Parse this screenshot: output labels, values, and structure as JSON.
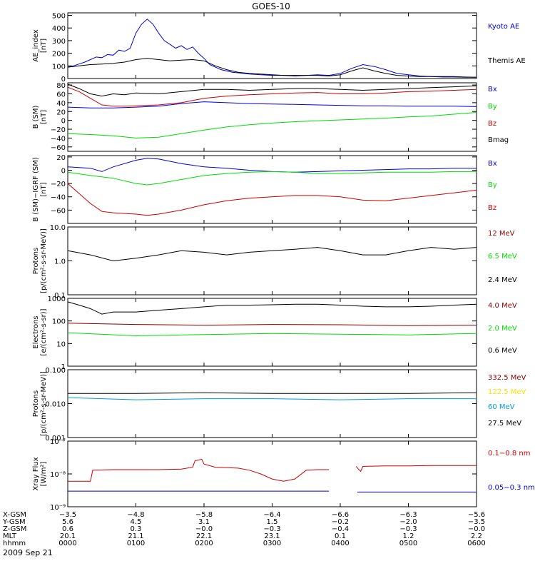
{
  "title": "GOES-10",
  "colors": {
    "black": "#000000",
    "blue": "#0000dd",
    "green": "#00dd00",
    "red": "#cc0000",
    "darkred": "#8b0000",
    "cyan": "#0099dd",
    "yellow": "#ffe000"
  },
  "chart_data": [
    {
      "type": "line",
      "ylabel": "AE_index [nT]",
      "ylabel_lines": [
        "AE_index",
        "[nT]"
      ],
      "ylim": [
        0,
        520
      ],
      "yticks": [
        "0",
        "100",
        "200",
        "300",
        "400",
        "500"
      ],
      "ytick_values": [
        0,
        100,
        200,
        300,
        400,
        500
      ],
      "series": [
        {
          "name": "Kyoto AE",
          "color": "#0000dd",
          "x": [
            0,
            5,
            10,
            15,
            20,
            25,
            30,
            35,
            40,
            45,
            50,
            55,
            60,
            65,
            70,
            75,
            80,
            85,
            90,
            95,
            100,
            105,
            110,
            115,
            120,
            125,
            130,
            135,
            140,
            145,
            150,
            155,
            160,
            170,
            180,
            190,
            200,
            210,
            220,
            230,
            240,
            250,
            260,
            270,
            280,
            290,
            300,
            310,
            320,
            330,
            340,
            350,
            360
          ],
          "y": [
            90,
            100,
            115,
            130,
            150,
            170,
            165,
            190,
            185,
            225,
            215,
            240,
            360,
            430,
            470,
            430,
            360,
            300,
            270,
            240,
            260,
            230,
            250,
            200,
            160,
            110,
            90,
            70,
            60,
            50,
            45,
            40,
            35,
            30,
            25,
            25,
            20,
            25,
            30,
            25,
            40,
            80,
            110,
            95,
            70,
            40,
            30,
            20,
            15,
            15,
            15,
            12,
            10
          ]
        },
        {
          "name": "Themis AE",
          "color": "#000000",
          "x": [
            0,
            10,
            20,
            30,
            40,
            50,
            60,
            70,
            80,
            90,
            100,
            110,
            120,
            130,
            140,
            150,
            160,
            170,
            180,
            190,
            200,
            210,
            220,
            230,
            240,
            250,
            260,
            270,
            280,
            290,
            300,
            310,
            320,
            330,
            340,
            350,
            360
          ],
          "y": [
            90,
            100,
            110,
            115,
            120,
            130,
            150,
            160,
            150,
            140,
            145,
            150,
            140,
            100,
            70,
            50,
            40,
            35,
            30,
            25,
            25,
            25,
            25,
            20,
            30,
            60,
            85,
            60,
            40,
            25,
            20,
            15,
            15,
            12,
            12,
            10,
            10
          ]
        }
      ]
    },
    {
      "type": "line",
      "ylabel": "B (SM) [nT]",
      "ylabel_lines": [
        "B (SM)",
        "[nT]"
      ],
      "ylim": [
        -70,
        85
      ],
      "yticks": [
        "−60",
        "−40",
        "−20",
        "0",
        "20",
        "40",
        "60",
        "80"
      ],
      "ytick_values": [
        -60,
        -40,
        -20,
        0,
        20,
        40,
        60,
        80
      ],
      "series": [
        {
          "name": "Bx",
          "color": "#0000dd",
          "x": [
            0,
            20,
            40,
            60,
            80,
            100,
            120,
            140,
            160,
            180,
            200,
            220,
            240,
            260,
            280,
            300,
            320,
            340,
            360
          ],
          "y": [
            30,
            28,
            28,
            30,
            32,
            38,
            42,
            40,
            38,
            37,
            36,
            35,
            34,
            33,
            33,
            32,
            32,
            32,
            31
          ]
        },
        {
          "name": "By",
          "color": "#00dd00",
          "x": [
            0,
            20,
            40,
            60,
            80,
            100,
            120,
            140,
            160,
            180,
            200,
            220,
            240,
            260,
            280,
            300,
            320,
            340,
            360
          ],
          "y": [
            -30,
            -32,
            -35,
            -40,
            -38,
            -30,
            -22,
            -15,
            -10,
            -6,
            -3,
            -1,
            1,
            3,
            5,
            8,
            10,
            14,
            18
          ]
        },
        {
          "name": "Bz",
          "color": "#cc0000",
          "x": [
            0,
            10,
            20,
            30,
            40,
            50,
            60,
            80,
            100,
            120,
            140,
            160,
            180,
            200,
            220,
            240,
            260,
            280,
            300,
            320,
            340,
            360
          ],
          "y": [
            75,
            65,
            50,
            35,
            32,
            32,
            33,
            35,
            40,
            50,
            55,
            58,
            60,
            62,
            63,
            60,
            60,
            62,
            65,
            66,
            68,
            70
          ]
        },
        {
          "name": "Bmag",
          "color": "#000000",
          "x": [
            0,
            10,
            20,
            30,
            40,
            50,
            60,
            80,
            100,
            120,
            140,
            160,
            180,
            200,
            220,
            240,
            260,
            280,
            300,
            320,
            340,
            360
          ],
          "y": [
            82,
            72,
            60,
            55,
            60,
            58,
            62,
            60,
            65,
            70,
            70,
            68,
            70,
            72,
            72,
            70,
            68,
            70,
            72,
            74,
            76,
            78
          ]
        }
      ]
    },
    {
      "type": "line",
      "ylabel": "B (SM)−IGRF (SM) [nT]",
      "ylabel_lines": [
        "B (SM)−IGRF (SM)",
        "[nT]"
      ],
      "ylim": [
        -80,
        22
      ],
      "yticks": [
        "−60",
        "−40",
        "−20",
        "0",
        "20"
      ],
      "ytick_values": [
        -60,
        -40,
        -20,
        0,
        20
      ],
      "series": [
        {
          "name": "Bx",
          "color": "#0000dd",
          "x": [
            0,
            20,
            30,
            40,
            60,
            70,
            80,
            100,
            120,
            140,
            160,
            180,
            200,
            220,
            240,
            260,
            280,
            300,
            320,
            340,
            360
          ],
          "y": [
            5,
            3,
            -2,
            5,
            15,
            18,
            17,
            10,
            5,
            3,
            0,
            -2,
            -3,
            -2,
            -1,
            0,
            1,
            2,
            2,
            3,
            3
          ]
        },
        {
          "name": "By",
          "color": "#00dd00",
          "x": [
            0,
            20,
            40,
            60,
            70,
            80,
            100,
            120,
            140,
            160,
            180,
            200,
            220,
            240,
            260,
            280,
            300,
            320,
            340,
            360
          ],
          "y": [
            -3,
            -8,
            -12,
            -20,
            -22,
            -20,
            -14,
            -8,
            -5,
            -3,
            -2,
            -3,
            -5,
            -5,
            -4,
            -3,
            -3,
            -3,
            -2,
            -2
          ]
        },
        {
          "name": "Bz",
          "color": "#cc0000",
          "x": [
            0,
            10,
            20,
            30,
            40,
            60,
            70,
            80,
            100,
            120,
            140,
            160,
            180,
            200,
            220,
            240,
            260,
            280,
            300,
            320,
            340,
            360
          ],
          "y": [
            -20,
            -35,
            -50,
            -62,
            -64,
            -66,
            -68,
            -66,
            -60,
            -52,
            -46,
            -42,
            -40,
            -38,
            -38,
            -40,
            -45,
            -46,
            -42,
            -38,
            -34,
            -30
          ]
        }
      ]
    },
    {
      "type": "line",
      "ylabel": "Protons [p/(cm²-s-sr-MeV)]",
      "ylabel_lines": [
        "Protons",
        "[p/(cm²-s-sr-MeV)]"
      ],
      "yscale": "log",
      "ylim": [
        0.1,
        10
      ],
      "yticks": [
        "0.1",
        "1.0",
        "10.0"
      ],
      "ytick_values": [
        0.1,
        1,
        10
      ],
      "series": [
        {
          "name": "12 MeV",
          "color": "#8b0000",
          "x": [],
          "y": []
        },
        {
          "name": "6.5 MeV",
          "color": "#00dd00",
          "x": [],
          "y": []
        },
        {
          "name": "2.4 MeV",
          "color": "#000000",
          "x": [
            0,
            20,
            40,
            60,
            80,
            100,
            120,
            140,
            160,
            180,
            200,
            220,
            240,
            260,
            280,
            300,
            320,
            340,
            360
          ],
          "y": [
            2,
            1.5,
            1,
            1.2,
            1.5,
            2,
            1.8,
            1.5,
            1.8,
            2,
            2.2,
            2.5,
            2,
            1.5,
            1.5,
            2,
            2.5,
            2.2,
            2.5
          ]
        }
      ]
    },
    {
      "type": "line",
      "ylabel": "Electrons [e/(cm²-s-sr)]",
      "ylabel_lines": [
        "Electrons",
        "[e/(cm²-s-sr)]"
      ],
      "yscale": "log",
      "ylim": [
        1,
        1000
      ],
      "yticks": [
        "1",
        "10",
        "100",
        "1000"
      ],
      "ytick_values": [
        1,
        10,
        100,
        1000
      ],
      "series": [
        {
          "name": "4.0 MeV",
          "color": "#8b0000",
          "x": [
            0,
            60,
            120,
            180,
            240,
            300,
            360
          ],
          "y": [
            80,
            70,
            65,
            70,
            68,
            62,
            65
          ]
        },
        {
          "name": "2.0 MeV",
          "color": "#00dd00",
          "x": [
            0,
            60,
            120,
            180,
            240,
            300,
            360
          ],
          "y": [
            30,
            22,
            25,
            28,
            26,
            24,
            28
          ]
        },
        {
          "name": "0.6 MeV",
          "color": "#000000",
          "x": [
            0,
            10,
            20,
            30,
            40,
            60,
            80,
            100,
            120,
            140,
            160,
            180,
            200,
            220,
            240,
            260,
            280,
            300,
            320,
            340,
            360
          ],
          "y": [
            700,
            500,
            350,
            200,
            250,
            250,
            300,
            350,
            420,
            500,
            500,
            520,
            550,
            550,
            500,
            450,
            420,
            420,
            450,
            500,
            550
          ]
        }
      ]
    },
    {
      "type": "line",
      "ylabel": "Protons [p/(cm²-s-sr-MeV)]",
      "ylabel_lines": [
        "Protons",
        "[p/(cm²-s-sr-MeV)]"
      ],
      "yscale": "log",
      "ylim": [
        0.001,
        0.1
      ],
      "yticks": [
        "0.001",
        "0.010",
        "0.100"
      ],
      "ytick_values": [
        0.001,
        0.01,
        0.1
      ],
      "series": [
        {
          "name": "332.5 MeV",
          "color": "#8b0000",
          "x": [],
          "y": []
        },
        {
          "name": "122.5 MeV",
          "color": "#ffe000",
          "x": [],
          "y": []
        },
        {
          "name": "60 MeV",
          "color": "#0099dd",
          "x": [
            0,
            60,
            120,
            180,
            240,
            300,
            360
          ],
          "y": [
            0.015,
            0.013,
            0.014,
            0.014,
            0.013,
            0.014,
            0.014
          ]
        },
        {
          "name": "27.5 MeV",
          "color": "#000000",
          "x": [
            0,
            60,
            120,
            180,
            240,
            300,
            360
          ],
          "y": [
            0.02,
            0.02,
            0.021,
            0.02,
            0.02,
            0.02,
            0.021
          ]
        }
      ]
    },
    {
      "type": "line",
      "ylabel": "Xray Flux [W/m²]",
      "ylabel_lines": [
        "Xray Flux",
        "[W/m²]"
      ],
      "yscale": "log",
      "ylim": [
        1e-09,
        1e-07
      ],
      "yticks": [
        "10⁻⁹",
        "10⁻⁸",
        "10⁻⁷"
      ],
      "ytick_values": [
        1e-09,
        1e-08,
        1e-07
      ],
      "series": [
        {
          "name": "0.1−0.8 nm",
          "color": "#cc0000",
          "x": [
            0,
            20,
            22,
            40,
            60,
            80,
            100,
            110,
            112,
            118,
            120,
            130,
            150,
            160,
            170,
            180,
            190,
            200,
            210,
            220,
            230,
            240,
            250,
            254,
            256,
            258,
            260,
            280,
            300,
            320,
            340,
            360
          ],
          "y": [
            6e-09,
            6e-09,
            1.3e-08,
            1.35e-08,
            1.35e-08,
            1.35e-08,
            1.4e-08,
            1.6e-08,
            2.5e-08,
            2.8e-08,
            2e-08,
            1.6e-08,
            1.5e-08,
            1.3e-08,
            1e-08,
            7e-09,
            6e-09,
            7e-09,
            1.3e-08,
            1.35e-08,
            1.35e-08,
            null,
            null,
            1.7e-08,
            1.4e-08,
            1.2e-08,
            1.7e-08,
            1.75e-08,
            1.75e-08,
            1.8e-08,
            1.8e-08,
            1.8e-08
          ]
        },
        {
          "name": "0.05−0.3 nm",
          "color": "#0000dd",
          "x": [
            0,
            60,
            120,
            180,
            230,
            240,
            250,
            255,
            300,
            360
          ],
          "y": [
            3e-09,
            3e-09,
            3e-09,
            3e-09,
            3e-09,
            null,
            null,
            2.8e-09,
            2.8e-09,
            2.8e-09
          ]
        }
      ]
    }
  ],
  "legend_labels": [
    [
      "Kyoto AE",
      "Themis AE"
    ],
    [
      "Bx",
      "By",
      "Bz",
      "Bmag"
    ],
    [
      "Bx",
      "By",
      "Bz"
    ],
    [
      "12 MeV",
      "6.5 MeV",
      "2.4 MeV"
    ],
    [
      "4.0 MeV",
      "2.0 MeV",
      "0.6 MeV"
    ],
    [
      "332.5 MeV",
      "122.5 MeV",
      "60 MeV",
      "27.5 MeV"
    ],
    [
      "0.1−0.8 nm",
      "0.05−0.3 nm"
    ]
  ],
  "ephemeris": {
    "row_labels": [
      "X-GSM",
      "Y-GSM",
      "Z-GSM",
      "MLT",
      "hhmm"
    ],
    "columns": [
      [
        "−3.5",
        "5.6",
        "0.6",
        "20.1",
        "0000"
      ],
      [
        "−4.8",
        "4.5",
        "0.3",
        "21.1",
        "0100"
      ],
      [
        "−5.8",
        "3.1",
        "−0.0",
        "22.1",
        "0200"
      ],
      [
        "−6.4",
        "1.5",
        "−0.3",
        "23.1",
        "0300"
      ],
      [
        "−6.6",
        "−0.2",
        "−0.4",
        "0.1",
        "0400"
      ],
      [
        "−6.3",
        "−2.0",
        "−0.3",
        "1.2",
        "0500"
      ],
      [
        "−5.6",
        "−3.5",
        "−0.0",
        "2.2",
        "0600"
      ]
    ],
    "date": "2009 Sep 21"
  }
}
